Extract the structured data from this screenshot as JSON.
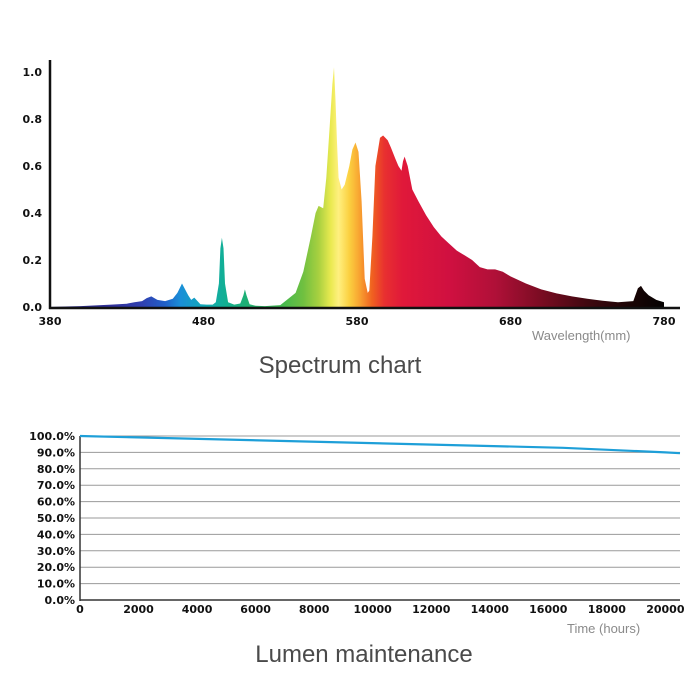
{
  "chart_data": [
    {
      "type": "area",
      "title": "Spectrum chart",
      "xlabel": "Wavelength(mm)",
      "ylabel": "",
      "xlim": [
        380,
        780
      ],
      "ylim": [
        0,
        1.0
      ],
      "x_ticks": [
        "380",
        "480",
        "580",
        "680",
        "780"
      ],
      "y_ticks": [
        "0.0",
        "0.2",
        "0.4",
        "0.6",
        "0.8",
        "1.0"
      ],
      "fill": "wavelength-gradient",
      "x": [
        380,
        390,
        400,
        410,
        420,
        430,
        435,
        440,
        443,
        446,
        450,
        455,
        460,
        463,
        466,
        470,
        472,
        474,
        478,
        482,
        486,
        488,
        490,
        491,
        492,
        493,
        494,
        496,
        500,
        504,
        506,
        507,
        508,
        510,
        514,
        520,
        530,
        540,
        545,
        550,
        553,
        555,
        558,
        560,
        562,
        564,
        565,
        566,
        567,
        568,
        570,
        572,
        575,
        577,
        579,
        581,
        583,
        585,
        587,
        588,
        590,
        592,
        595,
        597,
        600,
        602,
        605,
        607,
        609,
        610,
        611,
        613,
        616,
        620,
        625,
        630,
        635,
        640,
        645,
        650,
        655,
        660,
        665,
        670,
        675,
        680,
        690,
        700,
        710,
        720,
        730,
        740,
        750,
        760,
        763,
        765,
        767,
        770,
        775,
        780
      ],
      "y": [
        0.0,
        0.002,
        0.004,
        0.007,
        0.01,
        0.014,
        0.02,
        0.025,
        0.038,
        0.045,
        0.03,
        0.025,
        0.035,
        0.06,
        0.1,
        0.05,
        0.03,
        0.04,
        0.012,
        0.01,
        0.01,
        0.02,
        0.1,
        0.25,
        0.295,
        0.25,
        0.1,
        0.02,
        0.01,
        0.015,
        0.05,
        0.075,
        0.05,
        0.012,
        0.005,
        0.004,
        0.008,
        0.06,
        0.15,
        0.3,
        0.4,
        0.43,
        0.42,
        0.55,
        0.75,
        0.95,
        1.02,
        0.88,
        0.7,
        0.55,
        0.5,
        0.52,
        0.6,
        0.67,
        0.7,
        0.66,
        0.45,
        0.12,
        0.06,
        0.07,
        0.3,
        0.6,
        0.72,
        0.73,
        0.71,
        0.68,
        0.63,
        0.6,
        0.58,
        0.62,
        0.64,
        0.6,
        0.5,
        0.45,
        0.39,
        0.34,
        0.3,
        0.27,
        0.24,
        0.22,
        0.2,
        0.17,
        0.16,
        0.16,
        0.15,
        0.13,
        0.1,
        0.075,
        0.058,
        0.045,
        0.035,
        0.027,
        0.02,
        0.025,
        0.08,
        0.09,
        0.07,
        0.05,
        0.03,
        0.02
      ]
    },
    {
      "type": "line",
      "title": "Lumen maintenance",
      "xlabel": "Time (hours)",
      "ylabel": "",
      "xlim": [
        0,
        20500
      ],
      "ylim": [
        0,
        100
      ],
      "x_ticks": [
        "0",
        "2000",
        "4000",
        "6000",
        "8000",
        "10000",
        "12000",
        "14000",
        "16000",
        "18000",
        "20000"
      ],
      "y_ticks": [
        "0.0%",
        "10.0%",
        "20.0%",
        "30.0%",
        "40.0%",
        "50.0%",
        "60.0%",
        "70.0%",
        "80.0%",
        "90.0%",
        "100.0%"
      ],
      "series": [
        {
          "x": [
            0,
            16500,
            20000,
            20500
          ],
          "y": [
            100,
            92.8,
            90.0,
            89.5
          ]
        }
      ],
      "line_color": "#1e9fd8"
    }
  ]
}
